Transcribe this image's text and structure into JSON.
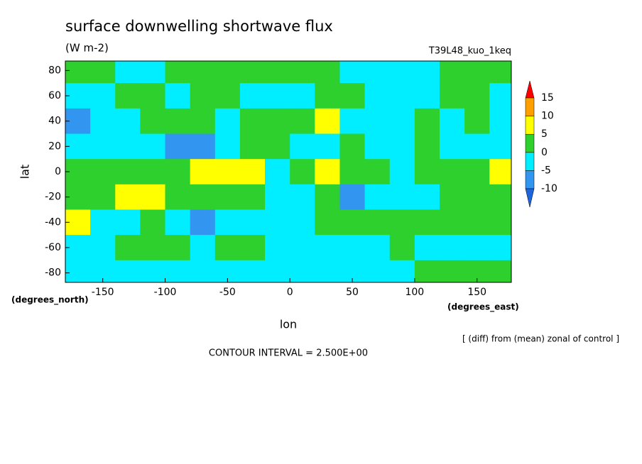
{
  "chart_data": {
    "type": "contour",
    "title": "surface downwelling shortwave flux",
    "subtitle": "(W m-2)",
    "run": "T39L48_kuo_1keq",
    "x_label": "lon",
    "y_label": "lat",
    "x_units": "(degrees_east)",
    "y_units": "(degrees_north)",
    "note": "[ (diff) from (mean) zonal of control ]",
    "contour_interval": "CONTOUR INTERVAL = 2.500E+00",
    "xlim": [
      -180,
      177.5
    ],
    "ylim": [
      -87.5,
      87.5
    ],
    "xticks": [
      -150,
      -100,
      -50,
      0,
      50,
      100,
      150
    ],
    "yticks": [
      -80,
      -60,
      -40,
      -20,
      0,
      20,
      40,
      60,
      80
    ],
    "lon": [
      -170,
      -150,
      -130,
      -110,
      -90,
      -70,
      -50,
      -30,
      -10,
      10,
      30,
      50,
      70,
      90,
      110,
      130,
      150,
      170
    ],
    "lat": [
      80,
      60,
      40,
      20,
      0,
      -20,
      -40,
      -60,
      -80
    ],
    "z": [
      [
        2,
        2,
        -2,
        -2,
        2,
        2,
        2,
        2,
        2,
        2,
        2,
        -2,
        -2,
        -2,
        -2,
        2,
        2,
        2
      ],
      [
        -2,
        -2,
        2,
        2,
        -2,
        2,
        2,
        -2,
        -2,
        -2,
        2,
        2,
        -2,
        -2,
        -2,
        2,
        2,
        -2
      ],
      [
        -7,
        -2,
        -2,
        2,
        2,
        2,
        -2,
        2,
        2,
        2,
        7,
        -2,
        -2,
        -2,
        2,
        -2,
        2,
        -2
      ],
      [
        -2,
        -2,
        -2,
        -2,
        -7,
        -7,
        -2,
        2,
        2,
        -2,
        -2,
        2,
        -2,
        -2,
        2,
        -2,
        -2,
        -2
      ],
      [
        2,
        2,
        2,
        2,
        2,
        7,
        7,
        7,
        -2,
        2,
        7,
        2,
        2,
        -2,
        2,
        2,
        2,
        7
      ],
      [
        2,
        2,
        7,
        7,
        2,
        2,
        2,
        2,
        -2,
        -2,
        2,
        -7,
        -2,
        -2,
        -2,
        2,
        2,
        2
      ],
      [
        7,
        -2,
        -2,
        2,
        -2,
        -7,
        -2,
        -2,
        -2,
        -2,
        2,
        2,
        2,
        2,
        2,
        2,
        2,
        2
      ],
      [
        -2,
        -2,
        2,
        2,
        2,
        -2,
        2,
        2,
        -2,
        -2,
        -2,
        -2,
        -2,
        2,
        -2,
        -2,
        -2,
        -2
      ],
      [
        -2,
        -2,
        -2,
        -2,
        -2,
        -2,
        -2,
        -2,
        -2,
        -2,
        -2,
        -2,
        -2,
        -2,
        2,
        2,
        2,
        2
      ]
    ],
    "colorbar": {
      "levels": [
        -10,
        -5,
        0,
        5,
        10,
        15
      ],
      "colors": [
        "#1e64dc",
        "#3296f0",
        "#00eeff",
        "#2ed02e",
        "#ffff00",
        "#ffa000",
        "#ff0000"
      ]
    }
  }
}
